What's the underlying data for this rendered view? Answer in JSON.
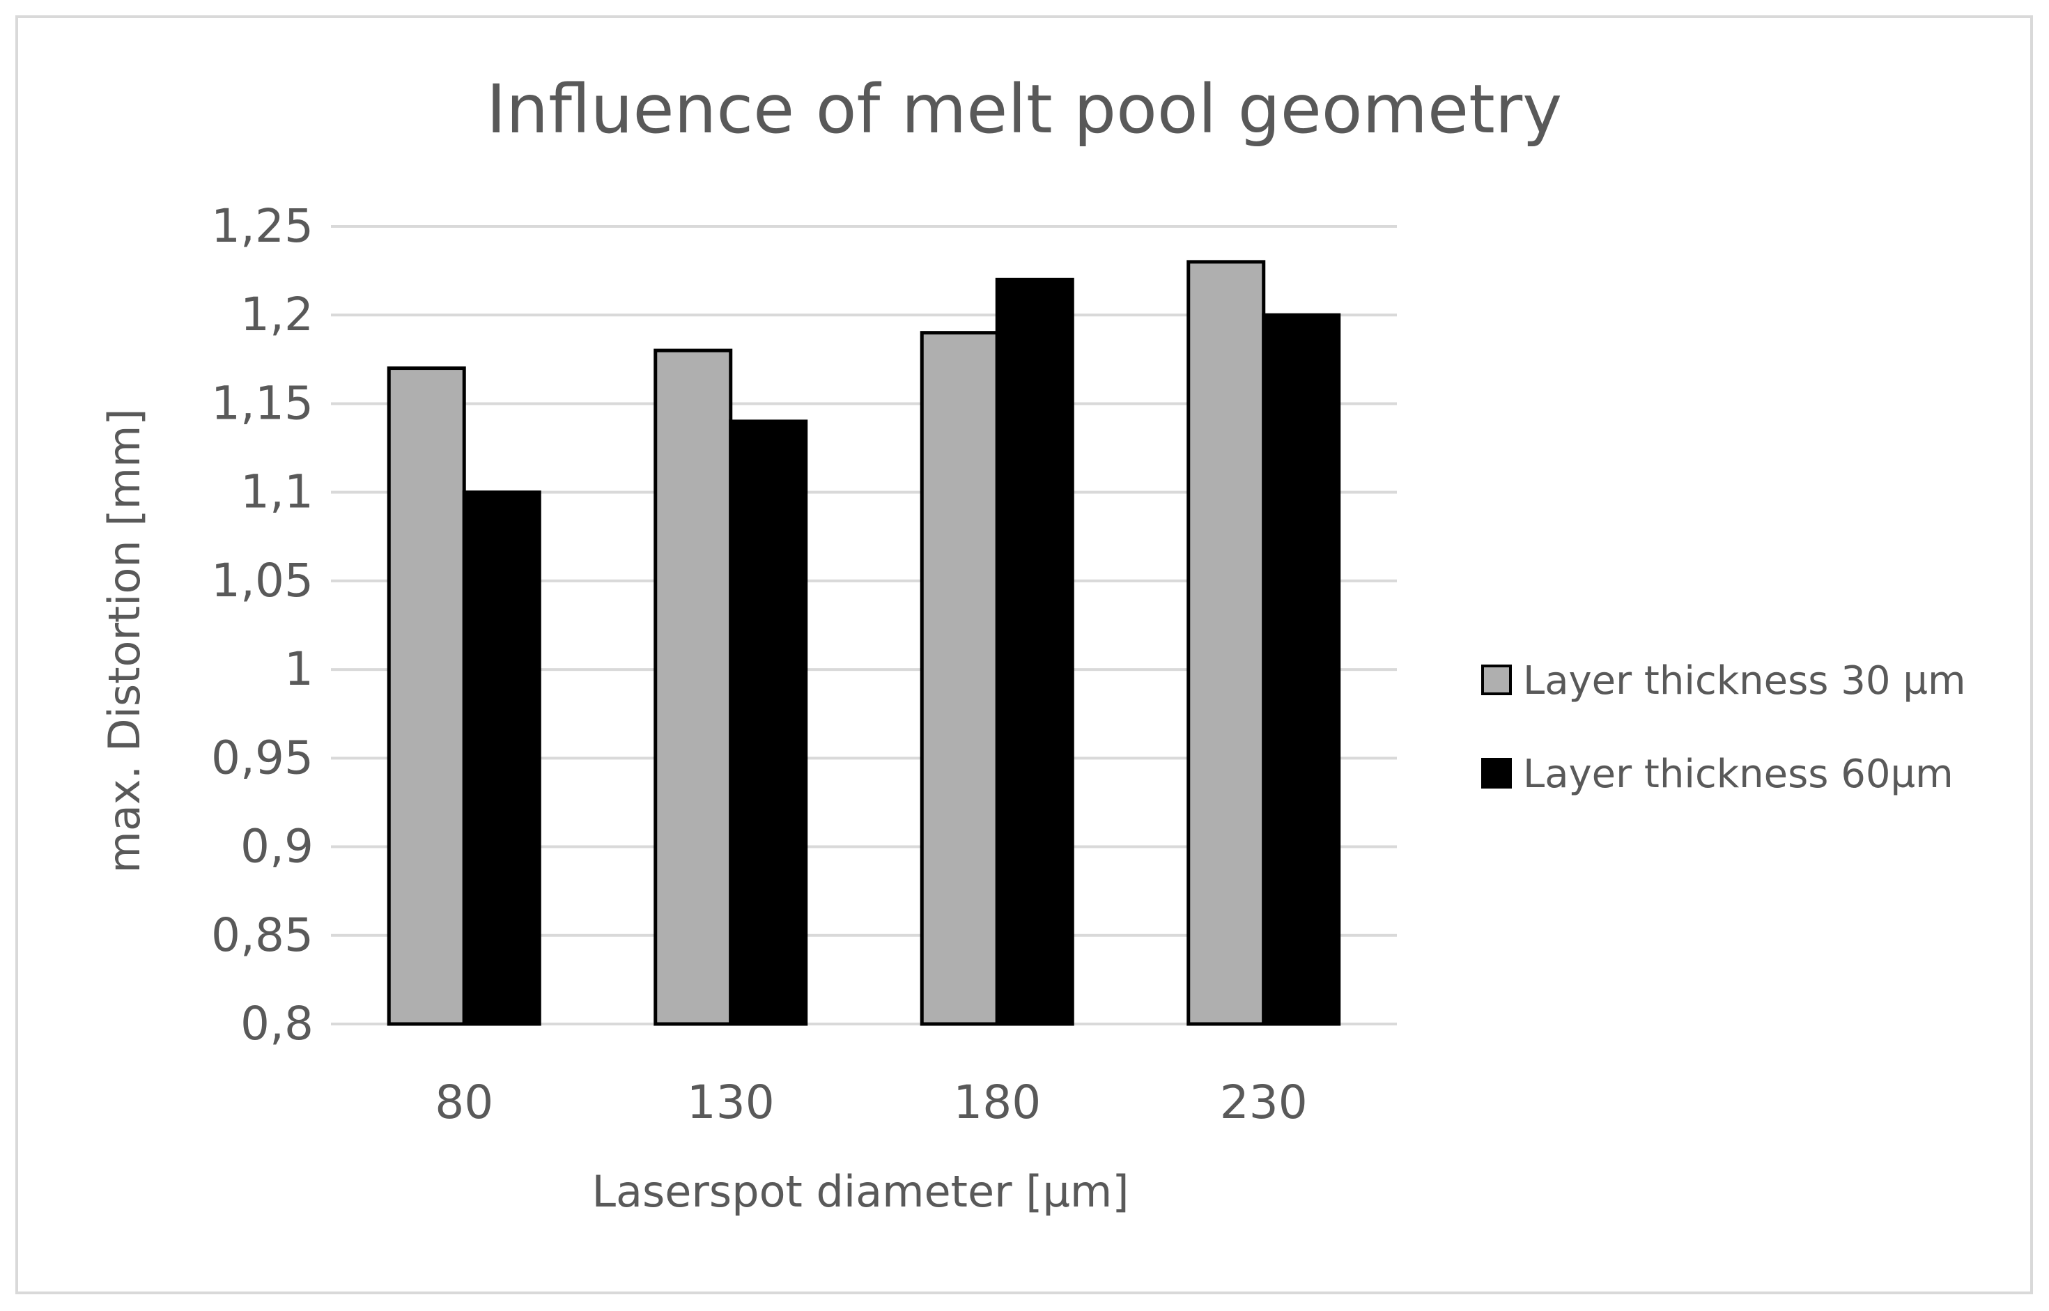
{
  "chart_data": {
    "type": "bar",
    "title": "Influence of melt pool geometry",
    "xlabel": "Laserspot diameter [µm]",
    "ylabel": "max. Distortion [mm]",
    "categories": [
      "80",
      "130",
      "180",
      "230"
    ],
    "series": [
      {
        "name": "Layer thickness 30 µm",
        "values": [
          1.17,
          1.18,
          1.19,
          1.23
        ],
        "color": "#afafaf"
      },
      {
        "name": "Layer thickness 60µm",
        "values": [
          1.1,
          1.14,
          1.22,
          1.2
        ],
        "color": "#000000"
      }
    ],
    "ylim": [
      0.8,
      1.25
    ],
    "yticks": [
      0.8,
      0.85,
      0.9,
      0.95,
      1,
      1.05,
      1.1,
      1.15,
      1.2,
      1.25
    ],
    "ytick_labels": [
      "0,8",
      "0,85",
      "0,9",
      "0,95",
      "1",
      "1,05",
      "1,1",
      "1,15",
      "1,2",
      "1,25"
    ],
    "grid": true,
    "legend_position": "right",
    "colors": {
      "gridline": "#d9d9d9",
      "text": "#595959",
      "frame": "#d9d9d9"
    }
  }
}
